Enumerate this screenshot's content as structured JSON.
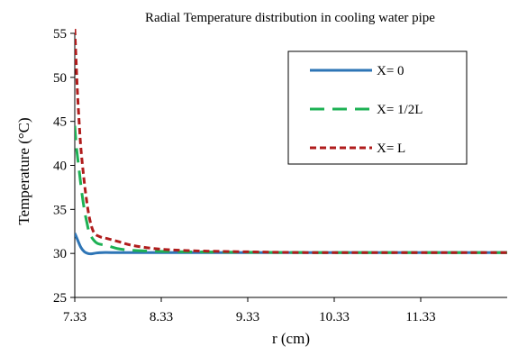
{
  "chart_data": {
    "type": "line",
    "title": "Radial Temperature distribution in cooling water pipe",
    "xlabel": "r (cm)",
    "ylabel": "Temperature (°C)",
    "xlim": [
      7.33,
      12.33
    ],
    "ylim": [
      25,
      55
    ],
    "x_ticks": [
      "7.33",
      "8.33",
      "9.33",
      "10.33",
      "11.33"
    ],
    "y_ticks": [
      "25",
      "30",
      "35",
      "40",
      "45",
      "50",
      "55"
    ],
    "grid": false,
    "legend_position": "top-right",
    "series": [
      {
        "name": "X= 0",
        "color": "#2E75B6",
        "dash": "solid",
        "x": [
          7.33,
          7.36,
          7.4,
          7.44,
          7.48,
          7.52,
          7.58,
          7.65,
          7.75,
          8.0,
          8.5,
          9.5,
          10.5,
          11.5,
          12.33
        ],
        "y": [
          32.3,
          31.6,
          30.7,
          30.2,
          30.0,
          29.95,
          30.05,
          30.1,
          30.1,
          30.1,
          30.1,
          30.1,
          30.1,
          30.1,
          30.1
        ]
      },
      {
        "name": "X= 1/2L",
        "color": "#1DB154",
        "dash": "long-dash",
        "x": [
          7.33,
          7.35,
          7.38,
          7.41,
          7.44,
          7.47,
          7.5,
          7.55,
          7.6,
          7.7,
          7.85,
          8.1,
          8.5,
          9.0,
          10.0,
          11.0,
          12.33
        ],
        "y": [
          44.5,
          42.0,
          39.5,
          37.0,
          35.0,
          33.5,
          32.3,
          31.5,
          31.1,
          30.9,
          30.5,
          30.3,
          30.2,
          30.15,
          30.1,
          30.1,
          30.1
        ]
      },
      {
        "name": "X= L",
        "color": "#B01C1C",
        "dash": "short-dash",
        "x": [
          7.33,
          7.345,
          7.36,
          7.38,
          7.4,
          7.43,
          7.46,
          7.5,
          7.55,
          7.62,
          7.7,
          7.85,
          8.0,
          8.3,
          8.7,
          9.2,
          10.0,
          11.0,
          12.33
        ],
        "y": [
          55.5,
          52.0,
          48.5,
          45.0,
          42.0,
          39.0,
          36.5,
          34.0,
          32.4,
          31.9,
          31.7,
          31.3,
          30.9,
          30.5,
          30.3,
          30.2,
          30.1,
          30.1,
          30.1
        ]
      }
    ]
  }
}
